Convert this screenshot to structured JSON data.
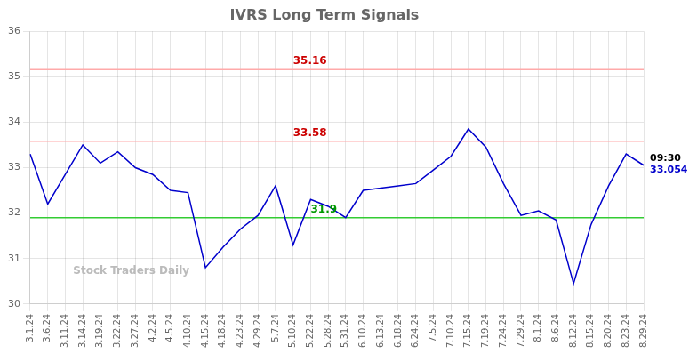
{
  "chart_data": {
    "type": "line",
    "title": "IVRS Long Term Signals",
    "categories": [
      "3.1.24",
      "3.6.24",
      "3.11.24",
      "3.14.24",
      "3.19.24",
      "3.22.24",
      "3.27.24",
      "4.2.24",
      "4.5.24",
      "4.10.24",
      "4.15.24",
      "4.18.24",
      "4.23.24",
      "4.29.24",
      "5.7.24",
      "5.10.24",
      "5.22.24",
      "5.28.24",
      "5.31.24",
      "6.10.24",
      "6.13.24",
      "6.18.24",
      "6.24.24",
      "7.5.24",
      "7.10.24",
      "7.15.24",
      "7.19.24",
      "7.24.24",
      "7.29.24",
      "8.1.24",
      "8.6.24",
      "8.12.24",
      "8.15.24",
      "8.20.24",
      "8.23.24",
      "8.29.24"
    ],
    "values": [
      33.3,
      32.2,
      32.85,
      33.5,
      33.1,
      33.35,
      33.0,
      32.85,
      32.5,
      32.45,
      30.8,
      31.25,
      31.65,
      31.95,
      32.6,
      31.3,
      32.3,
      32.15,
      31.9,
      32.5,
      32.55,
      32.6,
      32.65,
      32.95,
      33.25,
      33.85,
      33.45,
      32.65,
      31.95,
      32.05,
      31.85,
      30.45,
      31.75,
      32.6,
      33.3,
      33.054
    ],
    "color": "#0000cc",
    "hlines": [
      {
        "value": 35.16,
        "label": "35.16",
        "color": "#ffaaaa",
        "label_color": "#cc0000"
      },
      {
        "value": 33.58,
        "label": "33.58",
        "color": "#ffaaaa",
        "label_color": "#cc0000"
      },
      {
        "value": 31.9,
        "label": "31.9",
        "color": "#33cc33",
        "label_color": "#009900"
      }
    ],
    "annotations": [
      {
        "text": "09:30",
        "color": "#000000"
      },
      {
        "text": "33.054",
        "color": "#0000cc"
      }
    ],
    "watermark": {
      "text": "Stock Traders Daily",
      "color": "#bbbbbb"
    },
    "ylim": [
      30,
      36
    ],
    "yticks": [
      30,
      31,
      32,
      33,
      34,
      35,
      36
    ],
    "grid": true
  }
}
